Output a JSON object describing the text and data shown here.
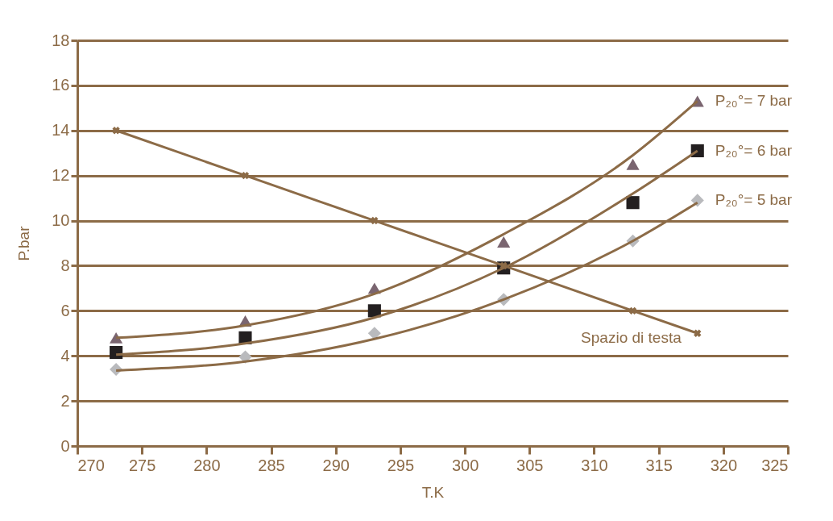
{
  "chart_data": {
    "type": "scatter",
    "xlabel": "T.K",
    "ylabel": "P.bar",
    "xlim": [
      270,
      325
    ],
    "xticks": [
      270,
      275,
      280,
      285,
      290,
      295,
      300,
      305,
      310,
      315,
      320,
      325
    ],
    "ylim": [
      0,
      18
    ],
    "yticks": [
      0,
      2,
      4,
      6,
      8,
      10,
      12,
      14,
      16,
      18
    ],
    "grid": "y",
    "x": [
      273,
      283,
      293,
      303,
      313,
      318
    ],
    "series": [
      {
        "name": "P₂₀°= 7 bar",
        "marker": "triangle",
        "color": "#7a6570",
        "values": [
          4.8,
          5.55,
          7.0,
          9.05,
          12.5,
          15.3
        ]
      },
      {
        "name": "P₂₀°= 6 bar",
        "marker": "square",
        "color": "#231f20",
        "values": [
          4.15,
          4.8,
          6.0,
          7.9,
          10.8,
          13.1
        ]
      },
      {
        "name": "P₂₀°= 5 bar",
        "marker": "diamond",
        "color": "#b9babd",
        "values": [
          3.4,
          3.95,
          5.0,
          6.5,
          9.1,
          10.9
        ]
      },
      {
        "type": "line",
        "marker": "none",
        "color": "#8c6b47",
        "values": [
          4.8,
          5.35,
          6.75,
          9.4,
          12.9,
          15.3
        ]
      },
      {
        "type": "line",
        "marker": "none",
        "color": "#8c6b47",
        "values": [
          4.05,
          4.55,
          5.7,
          7.9,
          11.2,
          13.1
        ]
      },
      {
        "type": "line",
        "marker": "none",
        "color": "#8c6b47",
        "values": [
          3.35,
          3.75,
          4.75,
          6.5,
          9.1,
          10.8
        ]
      },
      {
        "name": "Spazio di testa",
        "type": "line",
        "marker": "cross",
        "color": "#8c6b47",
        "values": [
          14,
          12,
          10,
          8,
          6,
          5
        ]
      }
    ]
  }
}
